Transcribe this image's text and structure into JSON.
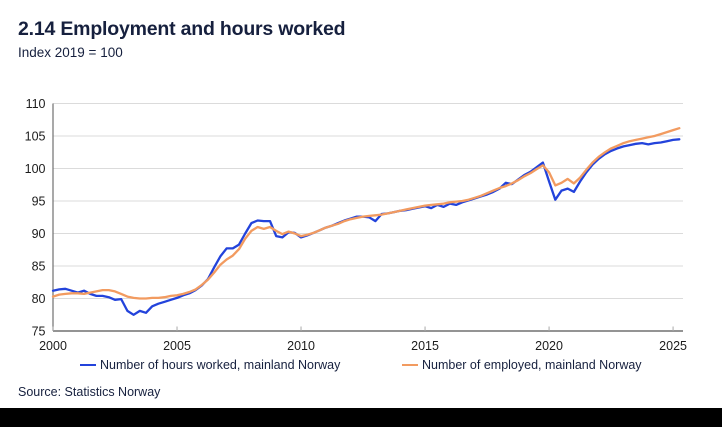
{
  "chart_data": {
    "type": "line",
    "title": "2.14 Employment and hours worked",
    "subtitle": "Index 2019 = 100",
    "xlabel": "",
    "ylabel": "",
    "x_start": 2000,
    "x_step": 0.25,
    "xlim": [
      2000,
      2025.4
    ],
    "ylim": [
      75,
      110
    ],
    "x_ticks": [
      2000,
      2005,
      2010,
      2015,
      2020,
      2025
    ],
    "y_ticks": [
      75,
      80,
      85,
      90,
      95,
      100,
      105,
      110
    ],
    "grid": "horizontal",
    "legend_position": "bottom",
    "series": [
      {
        "name": "Number of hours worked, mainland Norway",
        "color": "#2343DB",
        "values": [
          81.2,
          81.4,
          81.5,
          81.2,
          80.9,
          81.2,
          80.7,
          80.4,
          80.4,
          80.2,
          79.8,
          79.9,
          78.1,
          77.5,
          78.1,
          77.8,
          78.8,
          79.2,
          79.5,
          79.8,
          80.1,
          80.5,
          80.8,
          81.3,
          82.0,
          83.0,
          84.8,
          86.5,
          87.7,
          87.7,
          88.3,
          90.0,
          91.6,
          92.0,
          91.9,
          91.9,
          89.6,
          89.4,
          90.2,
          90.1,
          89.4,
          89.7,
          90.1,
          90.5,
          90.9,
          91.2,
          91.6,
          92.0,
          92.3,
          92.6,
          92.6,
          92.5,
          91.9,
          93.0,
          93.1,
          93.3,
          93.5,
          93.6,
          93.8,
          94.0,
          94.2,
          93.9,
          94.4,
          94.1,
          94.6,
          94.4,
          94.8,
          95.1,
          95.4,
          95.7,
          96.0,
          96.4,
          96.9,
          97.8,
          97.6,
          98.3,
          99.0,
          99.5,
          100.2,
          100.9,
          98.0,
          95.2,
          96.6,
          96.9,
          96.4,
          98.0,
          99.4,
          100.6,
          101.5,
          102.2,
          102.7,
          103.1,
          103.4,
          103.6,
          103.8,
          103.9,
          103.7,
          103.9,
          104.0,
          104.2,
          104.4,
          104.5
        ]
      },
      {
        "name": "Number of employed, mainland Norway",
        "color": "#F29B60",
        "values": [
          80.3,
          80.6,
          80.7,
          80.8,
          80.8,
          80.7,
          80.9,
          81.1,
          81.3,
          81.3,
          81.1,
          80.7,
          80.3,
          80.1,
          80.0,
          80.0,
          80.1,
          80.1,
          80.2,
          80.4,
          80.5,
          80.7,
          81.0,
          81.4,
          82.1,
          82.9,
          84.0,
          85.2,
          86.0,
          86.6,
          87.6,
          89.2,
          90.4,
          91.0,
          90.7,
          91.0,
          90.4,
          89.9,
          90.3,
          90.0,
          89.6,
          89.8,
          90.1,
          90.5,
          90.9,
          91.2,
          91.5,
          91.9,
          92.2,
          92.4,
          92.6,
          92.7,
          92.8,
          92.9,
          93.1,
          93.3,
          93.5,
          93.7,
          93.9,
          94.1,
          94.3,
          94.4,
          94.5,
          94.6,
          94.8,
          94.9,
          95.0,
          95.2,
          95.5,
          95.8,
          96.2,
          96.6,
          97.0,
          97.3,
          97.7,
          98.2,
          98.8,
          99.3,
          99.9,
          100.5,
          99.4,
          97.4,
          97.8,
          98.4,
          97.7,
          98.6,
          99.8,
          100.9,
          101.8,
          102.5,
          103.1,
          103.5,
          103.9,
          104.2,
          104.4,
          104.6,
          104.8,
          105.0,
          105.3,
          105.6,
          105.9,
          106.2
        ]
      }
    ]
  },
  "source": "Source: Statistics Norway",
  "colors": {
    "title_text": "#16203E",
    "tick_text": "#1C1C1C",
    "gridline": "#DBDBDB",
    "axis": "#707070",
    "footer_bar": "#000000",
    "background": "#FFFFFF"
  }
}
